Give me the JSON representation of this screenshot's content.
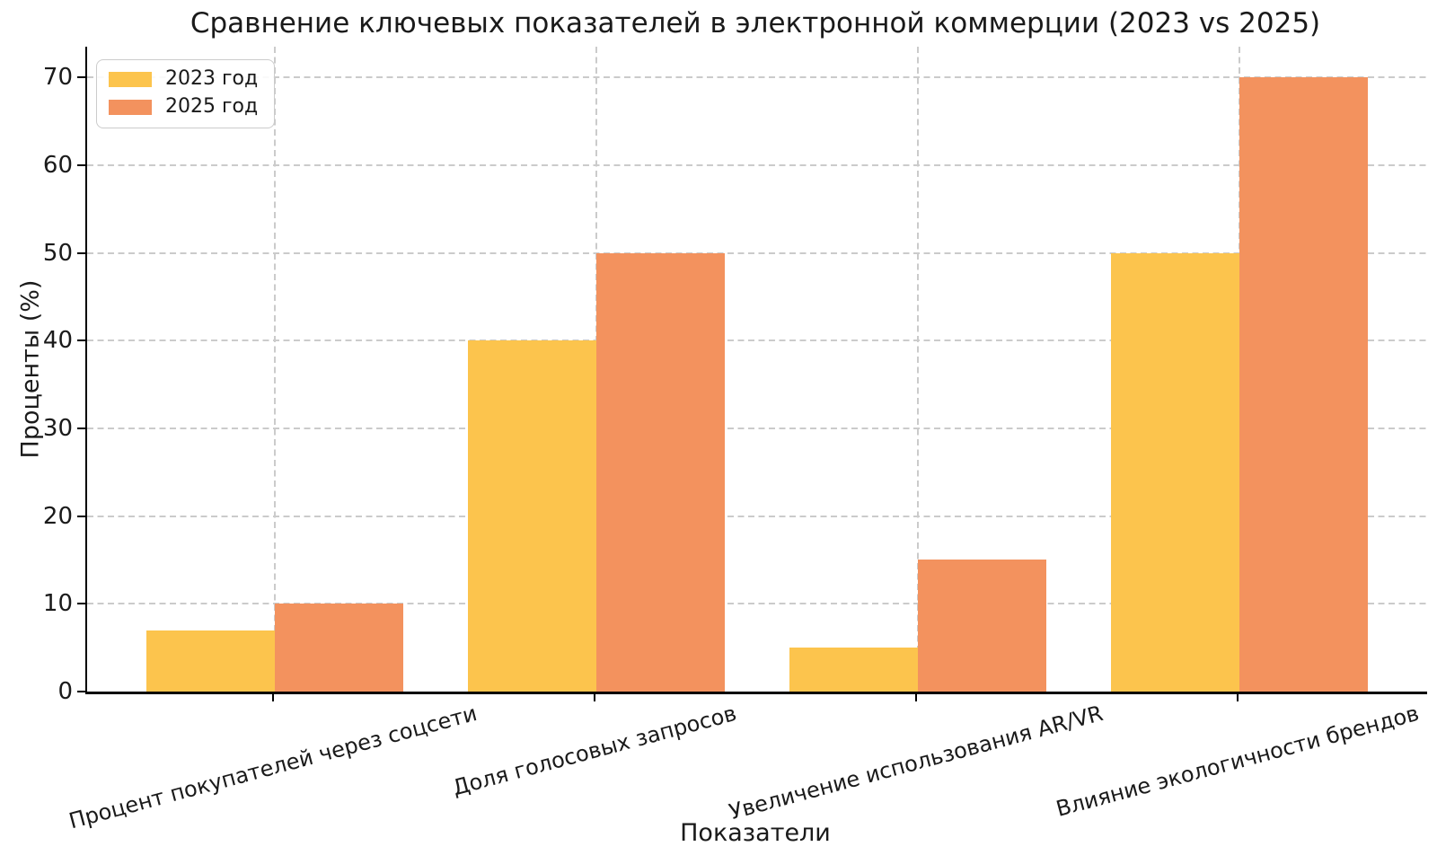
{
  "chart_data": {
    "type": "bar",
    "title": "Сравнение ключевых показателей в электронной коммерции (2023 vs 2025)",
    "xlabel": "Показатели",
    "ylabel": "Проценты (%)",
    "categories": [
      "Процент покупателей через соцсети",
      "Доля голосовых запросов",
      "Увеличение использования AR/VR",
      "Влияние экологичности брендов"
    ],
    "series": [
      {
        "name": "2023 год",
        "color": "#FCC44D",
        "values": [
          7,
          40,
          5,
          50
        ]
      },
      {
        "name": "2025 год",
        "color": "#F3925E",
        "values": [
          10,
          50,
          15,
          70
        ]
      }
    ],
    "ylim": [
      0,
      70
    ],
    "yticks": [
      0,
      10,
      20,
      30,
      40,
      50,
      60,
      70
    ],
    "grid": true,
    "grid_style": "dashed",
    "grid_color": "#cbcbcb",
    "xtick_rotation_deg": 15,
    "legend_position": "upper left",
    "bar_width_ratio": 0.4
  }
}
